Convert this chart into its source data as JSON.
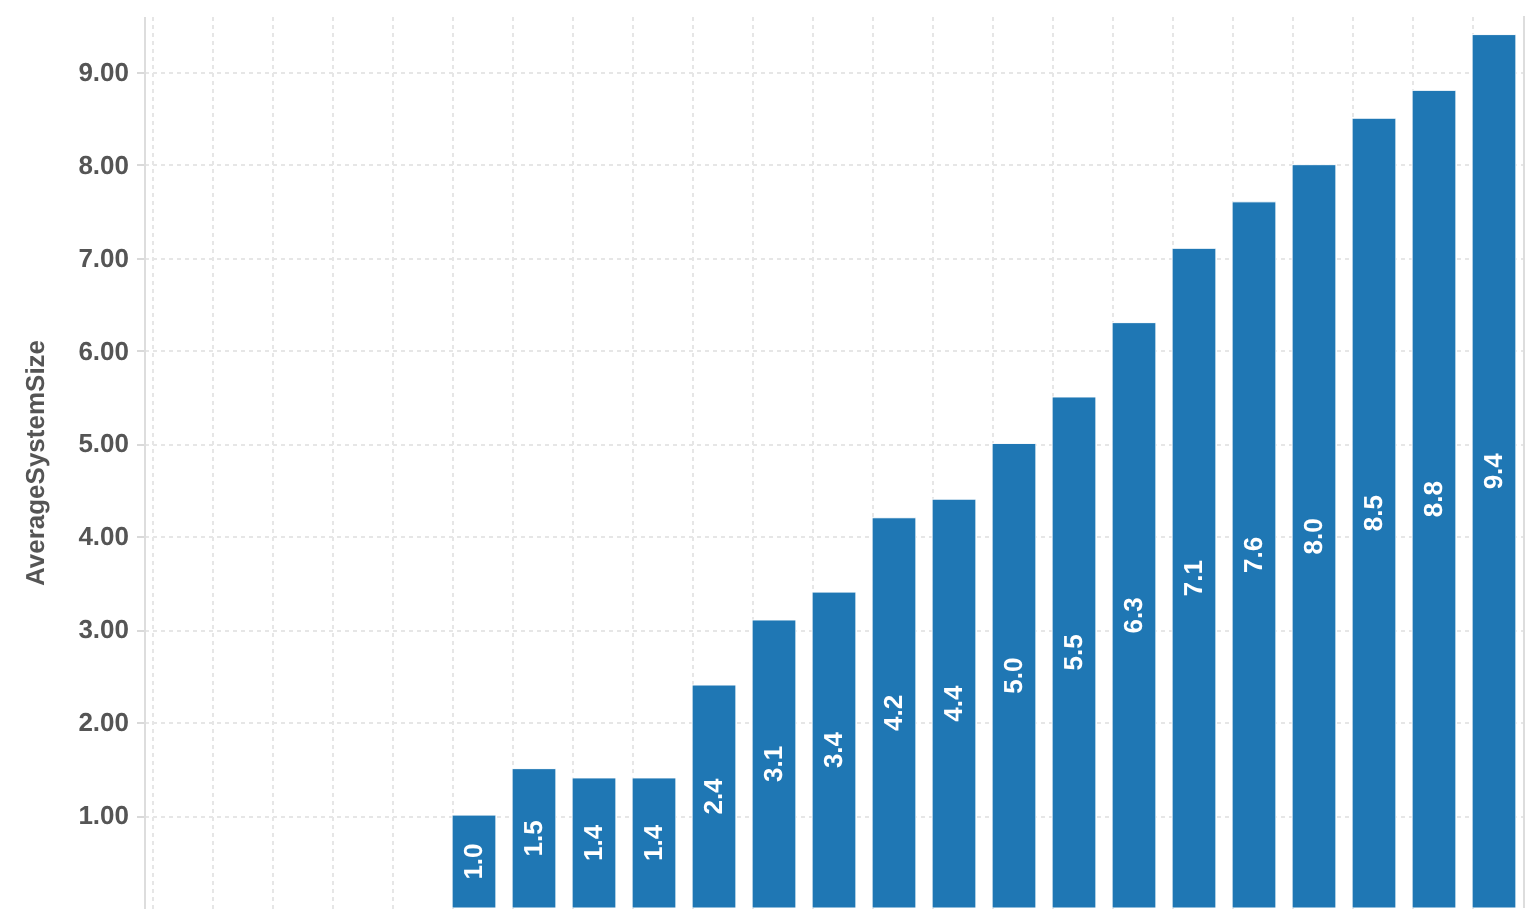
{
  "chart_data": {
    "type": "bar",
    "ylabel": "AverageSystemSize",
    "categories": [
      null,
      null,
      null,
      null,
      null,
      null,
      null,
      null,
      null,
      null,
      null,
      null,
      null,
      null,
      null,
      null,
      null,
      null,
      null,
      null,
      null,
      null,
      null
    ],
    "values": [
      null,
      null,
      null,
      null,
      null,
      1.0,
      1.5,
      1.4,
      1.4,
      2.4,
      3.1,
      3.4,
      4.2,
      4.4,
      5.0,
      5.5,
      6.3,
      7.1,
      7.6,
      8.0,
      8.5,
      8.8,
      9.4
    ],
    "value_labels": [
      null,
      null,
      null,
      null,
      null,
      "1.0",
      "1.5",
      "1.4",
      "1.4",
      "2.4",
      "3.1",
      "3.4",
      "4.2",
      "4.4",
      "5.0",
      "5.5",
      "6.3",
      "7.1",
      "7.6",
      "8.0",
      "8.5",
      "8.8",
      "9.4"
    ],
    "color": "#1f77b4",
    "ylim": [
      0,
      9.6
    ],
    "yticks": [
      {
        "value": 1,
        "label": "1.00"
      },
      {
        "value": 2,
        "label": "2.00"
      },
      {
        "value": 3,
        "label": "3.00"
      },
      {
        "value": 4,
        "label": "4.00"
      },
      {
        "value": 5,
        "label": "5.00"
      },
      {
        "value": 6,
        "label": "6.00"
      },
      {
        "value": 7,
        "label": "7.00"
      },
      {
        "value": 8,
        "label": "8.00"
      },
      {
        "value": 9,
        "label": "9.00"
      }
    ],
    "grid": true,
    "tick_labels": "y"
  }
}
